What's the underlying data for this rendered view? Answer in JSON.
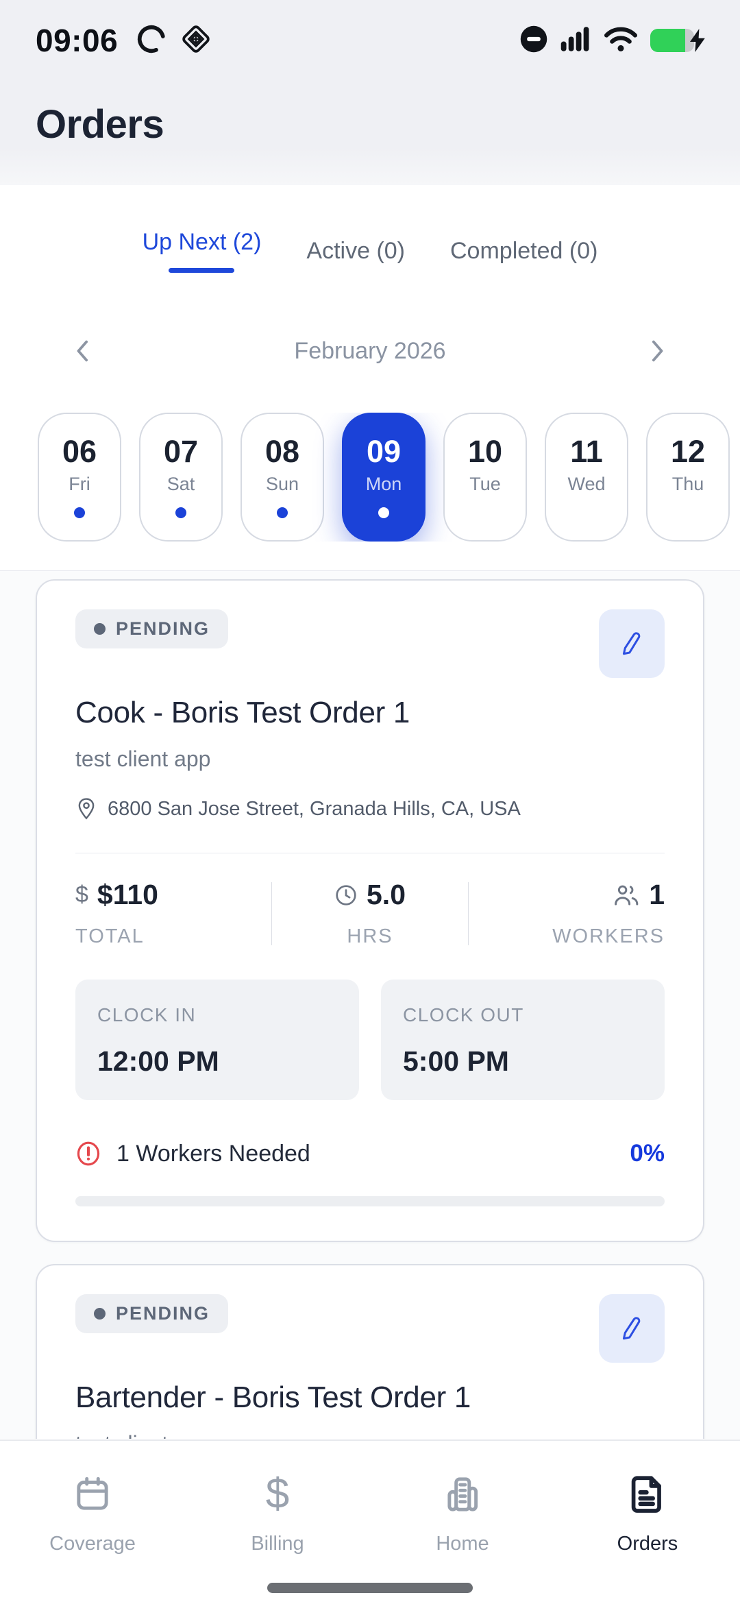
{
  "status_bar": {
    "time": "09:06"
  },
  "header": {
    "title": "Orders"
  },
  "tabs": {
    "items": [
      {
        "label": "Up Next (2)",
        "active": true
      },
      {
        "label": "Active (0)",
        "active": false
      },
      {
        "label": "Completed (0)",
        "active": false
      }
    ]
  },
  "calendar": {
    "month": "February 2026",
    "days": [
      {
        "num": "06",
        "name": "Fri",
        "dot": true,
        "selected": false
      },
      {
        "num": "07",
        "name": "Sat",
        "dot": true,
        "selected": false
      },
      {
        "num": "08",
        "name": "Sun",
        "dot": true,
        "selected": false
      },
      {
        "num": "09",
        "name": "Mon",
        "dot": true,
        "selected": true
      },
      {
        "num": "10",
        "name": "Tue",
        "dot": false,
        "selected": false
      },
      {
        "num": "11",
        "name": "Wed",
        "dot": false,
        "selected": false
      },
      {
        "num": "12",
        "name": "Thu",
        "dot": false,
        "selected": false
      }
    ]
  },
  "orders": [
    {
      "status": "PENDING",
      "title": "Cook - Boris Test Order 1",
      "client": "test client app",
      "address": "6800 San Jose Street, Granada Hills, CA, USA",
      "total_value": "$110",
      "total_label": "TOTAL",
      "hours_value": "5.0",
      "hours_label": "HRS",
      "workers_value": "1",
      "workers_label": "WORKERS",
      "clock_in_label": "CLOCK IN",
      "clock_in_value": "12:00 PM",
      "clock_out_label": "CLOCK OUT",
      "clock_out_value": "5:00 PM",
      "workers_needed": "1 Workers Needed",
      "fill_pct": "0%",
      "progress": 0
    },
    {
      "status": "PENDING",
      "title": "Bartender - Boris Test Order 1",
      "client": "test client app"
    }
  ],
  "nav": {
    "items": [
      {
        "label": "Coverage",
        "icon": "calendar-icon",
        "active": false
      },
      {
        "label": "Billing",
        "icon": "dollar-icon",
        "active": false
      },
      {
        "label": "Home",
        "icon": "building-icon",
        "active": false
      },
      {
        "label": "Orders",
        "icon": "document-icon",
        "active": true
      }
    ],
    "billing_glyph": "$"
  },
  "icons": {
    "status_left": [
      "loading-arc-icon",
      "diamond-badge-icon"
    ],
    "status_right": [
      "do-not-disturb-icon",
      "cellular-signal-icon",
      "wifi-icon",
      "battery-charging-icon"
    ]
  },
  "colors": {
    "accent_blue": "#1b42d8",
    "pct_blue": "#1539dd",
    "battery_green": "#30d158",
    "alert_red": "#e5484d",
    "chrome_gray": "#eff0f4"
  }
}
